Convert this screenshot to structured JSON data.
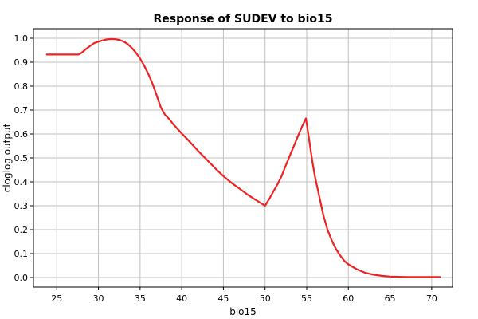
{
  "chart_data": {
    "type": "line",
    "title": "Response of SUDEV to bio15",
    "xlabel": "bio15",
    "ylabel": "cloglog output",
    "xlim": [
      22.2,
      72.5
    ],
    "ylim": [
      -0.04,
      1.04
    ],
    "grid": true,
    "legend": "none",
    "xticks": [
      25,
      30,
      35,
      40,
      45,
      50,
      55,
      60,
      65,
      70
    ],
    "yticks": [
      0.0,
      0.1,
      0.2,
      0.3,
      0.4,
      0.5,
      0.6,
      0.7,
      0.8,
      0.9,
      1.0
    ],
    "yticklabels": [
      "0.0",
      "0.1",
      "0.2",
      "0.3",
      "0.4",
      "0.5",
      "0.6",
      "0.7",
      "0.8",
      "0.9",
      "1.0"
    ],
    "series": [
      {
        "color": "#ee2222",
        "x": [
          23.8,
          25,
          26,
          27,
          27.6,
          28,
          28.5,
          29,
          29.5,
          30,
          30.5,
          31,
          31.5,
          32,
          32.5,
          33,
          33.5,
          34,
          34.5,
          35,
          35.5,
          36,
          36.5,
          37,
          37.5,
          38,
          38.5,
          39,
          40,
          41,
          42,
          43,
          44,
          45,
          46,
          47,
          48,
          49,
          50,
          50.5,
          51,
          51.5,
          52,
          52.5,
          53,
          53.5,
          54,
          54.5,
          54.9,
          55.3,
          55.7,
          56,
          56.5,
          57,
          57.5,
          58,
          58.5,
          59,
          59.5,
          60,
          61,
          62,
          63,
          64,
          65,
          66,
          67,
          68,
          69,
          70,
          71
        ],
        "y": [
          0.932,
          0.932,
          0.932,
          0.932,
          0.932,
          0.94,
          0.955,
          0.968,
          0.98,
          0.986,
          0.991,
          0.995,
          0.997,
          0.996,
          0.993,
          0.987,
          0.976,
          0.96,
          0.94,
          0.915,
          0.885,
          0.85,
          0.81,
          0.76,
          0.71,
          0.68,
          0.662,
          0.64,
          0.602,
          0.566,
          0.528,
          0.493,
          0.457,
          0.424,
          0.395,
          0.37,
          0.344,
          0.322,
          0.3,
          0.328,
          0.36,
          0.39,
          0.425,
          0.47,
          0.512,
          0.553,
          0.595,
          0.636,
          0.665,
          0.575,
          0.48,
          0.42,
          0.34,
          0.26,
          0.2,
          0.155,
          0.12,
          0.093,
          0.07,
          0.055,
          0.035,
          0.02,
          0.012,
          0.007,
          0.004,
          0.003,
          0.002,
          0.002,
          0.002,
          0.002,
          0.002
        ]
      }
    ]
  }
}
